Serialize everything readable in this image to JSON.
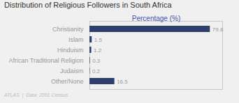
{
  "chart_data": {
    "type": "bar",
    "orientation": "horizontal",
    "title": "Distribution of Religious Followers in South Africa",
    "xlabel": "Percentage (%)",
    "caption": "ATLAS  |  Data: 2001 Census",
    "categories": [
      "Christianity",
      "Islam",
      "Hinduism",
      "African Traditional Religion",
      "Judaism",
      "Other/None"
    ],
    "values": [
      79.8,
      1.5,
      1.2,
      0.3,
      0.2,
      16.5
    ],
    "color": "#2e3f6e",
    "xlim": [
      0,
      88
    ],
    "data_labels": true,
    "tick_labels": "y",
    "grid": false
  }
}
